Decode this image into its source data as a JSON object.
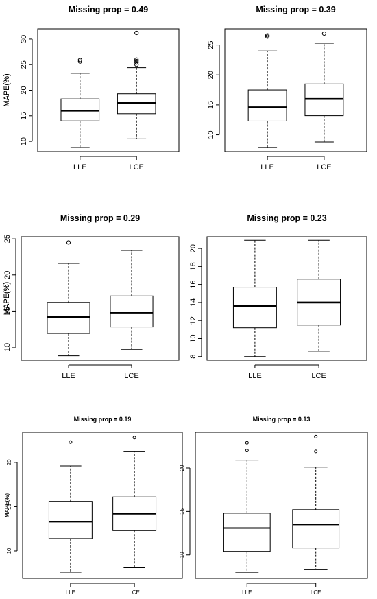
{
  "chart_data": [
    {
      "type": "box",
      "title": "Missing prop = 0.49",
      "ylabel": "MAPE(%)",
      "ylim": [
        8,
        32
      ],
      "yticks": [
        10,
        15,
        20,
        25,
        30
      ],
      "categories": [
        "LLE",
        "LCE"
      ],
      "boxes": [
        {
          "name": "LLE",
          "whisker_low": 8.8,
          "q1": 14.0,
          "median": 16.0,
          "q3": 18.3,
          "whisker_high": 23.3,
          "outliers": [
            25.6,
            25.9
          ]
        },
        {
          "name": "LCE",
          "whisker_low": 10.5,
          "q1": 15.4,
          "median": 17.5,
          "q3": 19.3,
          "whisker_high": 24.4,
          "outliers": [
            25.0,
            25.4,
            25.7,
            26.0,
            31.2
          ]
        }
      ]
    },
    {
      "type": "box",
      "title": "Missing prop = 0.39",
      "ylabel": "MAPE(%)",
      "ylim": [
        7.2,
        27.7
      ],
      "yticks": [
        10,
        15,
        20,
        25
      ],
      "categories": [
        "LLE",
        "LCE"
      ],
      "boxes": [
        {
          "name": "LLE",
          "whisker_low": 7.9,
          "q1": 12.3,
          "median": 14.6,
          "q3": 17.5,
          "whisker_high": 24.0,
          "outliers": [
            26.4,
            26.6
          ]
        },
        {
          "name": "LCE",
          "whisker_low": 8.8,
          "q1": 13.2,
          "median": 16.0,
          "q3": 18.5,
          "whisker_high": 25.3,
          "outliers": [
            26.9
          ]
        }
      ]
    },
    {
      "type": "box",
      "title": "Missing prop = 0.29",
      "ylabel": "MAPE(%)",
      "ylim": [
        8.2,
        25.3
      ],
      "yticks": [
        10,
        15,
        20,
        25
      ],
      "categories": [
        "LLE",
        "LCE"
      ],
      "boxes": [
        {
          "name": "LLE",
          "whisker_low": 8.8,
          "q1": 11.9,
          "median": 14.2,
          "q3": 16.2,
          "whisker_high": 21.6,
          "outliers": [
            24.5
          ]
        },
        {
          "name": "LCE",
          "whisker_low": 9.7,
          "q1": 12.8,
          "median": 14.8,
          "q3": 17.1,
          "whisker_high": 23.4,
          "outliers": []
        }
      ]
    },
    {
      "type": "box",
      "title": "Missing prop = 0.23",
      "ylabel": "MAPE(%)",
      "ylim": [
        7.6,
        21.3
      ],
      "yticks": [
        8,
        10,
        12,
        14,
        16,
        18,
        20
      ],
      "categories": [
        "LLE",
        "LCE"
      ],
      "boxes": [
        {
          "name": "LLE",
          "whisker_low": 8.0,
          "q1": 11.2,
          "median": 13.6,
          "q3": 15.7,
          "whisker_high": 20.9,
          "outliers": []
        },
        {
          "name": "LCE",
          "whisker_low": 8.6,
          "q1": 11.5,
          "median": 14.0,
          "q3": 16.6,
          "whisker_high": 20.9,
          "outliers": []
        }
      ]
    },
    {
      "type": "box",
      "title": "Missing prop = 0.19",
      "ylabel": "MAPE(%)",
      "ylim": [
        6.9,
        23.4
      ],
      "yticks": [
        10,
        15,
        20
      ],
      "categories": [
        "LLE",
        "LCE"
      ],
      "boxes": [
        {
          "name": "LLE",
          "whisker_low": 7.6,
          "q1": 11.4,
          "median": 13.3,
          "q3": 15.6,
          "whisker_high": 19.6,
          "outliers": [
            22.3
          ]
        },
        {
          "name": "LCE",
          "whisker_low": 8.1,
          "q1": 12.3,
          "median": 14.2,
          "q3": 16.1,
          "whisker_high": 21.2,
          "outliers": [
            22.8
          ]
        }
      ]
    },
    {
      "type": "box",
      "title": "Missing prop = 0.13",
      "ylabel": "MAPE(%)",
      "ylim": [
        7.3,
        24.1
      ],
      "yticks": [
        10,
        15,
        20
      ],
      "categories": [
        "LLE",
        "LCE"
      ],
      "boxes": [
        {
          "name": "LLE",
          "whisker_low": 8.0,
          "q1": 10.4,
          "median": 13.1,
          "q3": 14.8,
          "whisker_high": 20.9,
          "outliers": [
            22.0,
            22.9
          ]
        },
        {
          "name": "LCE",
          "whisker_low": 8.3,
          "q1": 10.8,
          "median": 13.5,
          "q3": 15.2,
          "whisker_high": 20.1,
          "outliers": [
            21.9,
            23.6
          ]
        }
      ]
    }
  ]
}
